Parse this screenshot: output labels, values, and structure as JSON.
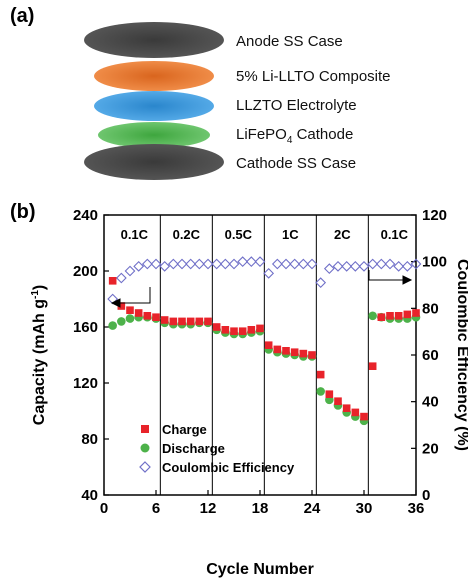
{
  "panel_a": {
    "label": "(a)",
    "layers": [
      {
        "label": "Anode SS Case",
        "color": "#4a4a4a"
      },
      {
        "label": "5% Li-LLTO Composite",
        "color": "#f07f2e"
      },
      {
        "label": "LLZTO Electrolyte",
        "color": "#3f9fe0"
      },
      {
        "label": "LiFePO",
        "sub": "4",
        "after": " Cathode",
        "color": "#5cc05c"
      },
      {
        "label": "Cathode SS Case",
        "color": "#4a4a4a"
      }
    ]
  },
  "panel_b": {
    "label": "(b)"
  },
  "colors": {
    "charge": "#e8232a",
    "discharge": "#4db24a",
    "ce": "#7070c8"
  },
  "chart_data": {
    "type": "scatter",
    "xlabel": "Cycle Number",
    "ylabel": "Capacity (mAh g",
    "ylabel_sup": "-1",
    "ylabel_end": ")",
    "y2label": "Coulombic Efficiency (%)",
    "xlim": [
      0,
      36
    ],
    "ylim": [
      40,
      240
    ],
    "y2lim": [
      0,
      120
    ],
    "xticks": [
      0,
      6,
      12,
      18,
      24,
      30,
      36
    ],
    "yticks": [
      40,
      80,
      120,
      160,
      200,
      240
    ],
    "y2ticks": [
      0,
      20,
      40,
      60,
      80,
      100,
      120
    ],
    "rate_dividers": [
      6.5,
      12.5,
      18.5,
      24.5,
      30.5
    ],
    "rate_labels": [
      {
        "text": "0.1C",
        "x": 3.5
      },
      {
        "text": "0.2C",
        "x": 9.5
      },
      {
        "text": "0.5C",
        "x": 15.5
      },
      {
        "text": "1C",
        "x": 21.5
      },
      {
        "text": "2C",
        "x": 27.5
      },
      {
        "text": "0.1C",
        "x": 33.5
      }
    ],
    "legend": [
      "Charge",
      "Discharge",
      "Coulombic Efficiency"
    ],
    "series": [
      {
        "name": "Charge",
        "x": [
          1,
          2,
          3,
          4,
          5,
          6,
          7,
          8,
          9,
          10,
          11,
          12,
          13,
          14,
          15,
          16,
          17,
          18,
          19,
          20,
          21,
          22,
          23,
          24,
          25,
          26,
          27,
          28,
          29,
          30,
          31,
          32,
          33,
          34,
          35,
          36
        ],
        "y": [
          193,
          175,
          172,
          170,
          168,
          167,
          165,
          164,
          164,
          164,
          164,
          164,
          160,
          158,
          157,
          157,
          158,
          159,
          147,
          144,
          143,
          142,
          141,
          140,
          126,
          112,
          107,
          102,
          99,
          96,
          132,
          167,
          168,
          168,
          169,
          170
        ]
      },
      {
        "name": "Discharge",
        "x": [
          1,
          2,
          3,
          4,
          5,
          6,
          7,
          8,
          9,
          10,
          11,
          12,
          13,
          14,
          15,
          16,
          17,
          18,
          19,
          20,
          21,
          22,
          23,
          24,
          25,
          26,
          27,
          28,
          29,
          30,
          31,
          32,
          33,
          34,
          35,
          36
        ],
        "y": [
          161,
          164,
          166,
          167,
          167,
          166,
          163,
          162,
          162,
          162,
          163,
          163,
          158,
          156,
          155,
          155,
          156,
          157,
          144,
          142,
          141,
          140,
          139,
          139,
          114,
          108,
          104,
          99,
          96,
          93,
          168,
          167,
          166,
          166,
          166,
          167
        ]
      },
      {
        "name": "Coulombic Efficiency",
        "axis": "right",
        "x": [
          1,
          2,
          3,
          4,
          5,
          6,
          7,
          8,
          9,
          10,
          11,
          12,
          13,
          14,
          15,
          16,
          17,
          18,
          19,
          20,
          21,
          22,
          23,
          24,
          25,
          26,
          27,
          28,
          29,
          30,
          31,
          32,
          33,
          34,
          35,
          36
        ],
        "y": [
          84,
          93,
          96,
          98,
          99,
          99,
          98,
          99,
          99,
          99,
          99,
          99,
          99,
          99,
          99,
          100,
          100,
          100,
          95,
          99,
          99,
          99,
          99,
          99,
          91,
          97,
          98,
          98,
          98,
          98,
          99,
          99,
          99,
          98,
          98,
          99
        ]
      }
    ]
  }
}
